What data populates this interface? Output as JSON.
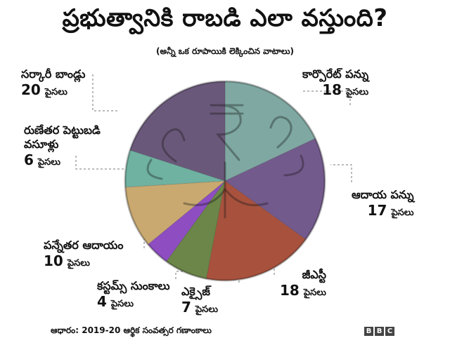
{
  "title": "ప్రభుత్వానికి రాబడి ఎలా వస్తుంది?",
  "subtitle": "(అన్నీ ఒక రూపాయికి లెక్కించిన వాటాలు)",
  "source": "ఆధారం: 2019-20 ఆర్థిక సంవత్సర గణాంకాలు",
  "logo": [
    "B",
    "B",
    "C"
  ],
  "unit": "పైసలు",
  "chart_data": {
    "type": "pie",
    "title": "ప్రభుత్వానికి రాబడి ఎలా వస్తుంది?",
    "unit": "పైసలు",
    "slices": [
      {
        "label": "కార్పొరేట్ పన్ను",
        "value": 18,
        "color": "#7fa8a2"
      },
      {
        "label": "ఆదాయ పన్ను",
        "value": 17,
        "color": "#735a8c"
      },
      {
        "label": "జీఎస్టీ",
        "value": 18,
        "color": "#a8523e"
      },
      {
        "label": "ఎక్సైజ్",
        "value": 7,
        "color": "#6b8648"
      },
      {
        "label": "కస్టమ్స్ సుంకాలు",
        "value": 4,
        "color": "#8e4ec2"
      },
      {
        "label": "పన్నేతర ఆదాయం",
        "value": 10,
        "color": "#c9a970"
      },
      {
        "label": "రుణేతర పెట్టుబడి వసూళ్లు",
        "value": 6,
        "color": "#6fb2a1"
      },
      {
        "label": "సర్కారీ బాండ్లు",
        "value": 20,
        "color": "#6a587a"
      }
    ]
  },
  "labels": {
    "corporate": {
      "name": "కార్పొరేట్ పన్ను",
      "value": "18"
    },
    "income": {
      "name": "ఆదాయ పన్ను",
      "value": "17"
    },
    "gst": {
      "name": "జీఎస్టీ",
      "value": "18"
    },
    "excise": {
      "name": "ఎక్సైజ్",
      "value": "7"
    },
    "customs": {
      "name": "కస్టమ్స్ సుంకాలు",
      "value": "4"
    },
    "nontax": {
      "name": "పన్నేతర ఆదాయం",
      "value": "10"
    },
    "nondebt_line1": "రుణేతర పెట్టుబడి",
    "nondebt_line2": "వసూళ్లు",
    "nondebt_value": "6",
    "bonds": {
      "name": "సర్కారీ బాండ్లు",
      "value": "20"
    }
  }
}
